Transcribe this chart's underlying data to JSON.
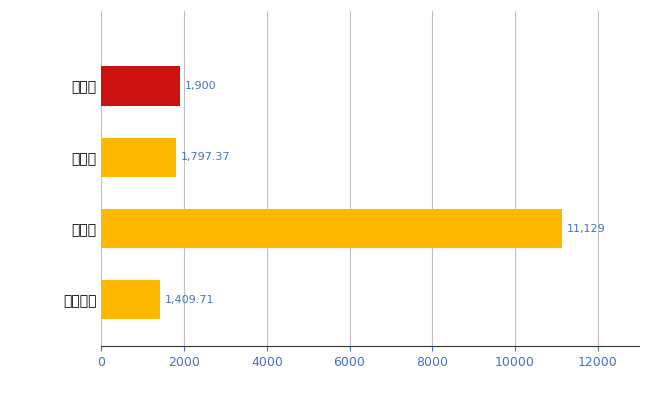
{
  "categories": [
    "全国平均",
    "県最大",
    "県平均",
    "七尾市"
  ],
  "values": [
    1409.71,
    11129,
    1797.37,
    1900
  ],
  "bar_colors": [
    "#FFB800",
    "#FFB800",
    "#FFB800",
    "#CC1111"
  ],
  "labels": [
    "1,409.71",
    "11,129",
    "1,797.37",
    "1,900"
  ],
  "xlim": [
    0,
    13000
  ],
  "xticks": [
    0,
    2000,
    4000,
    6000,
    8000,
    10000,
    12000
  ],
  "background_color": "#FFFFFF",
  "grid_color": "#C0C0C0",
  "label_color": "#4472C4",
  "tick_color": "#4472C4",
  "bar_height": 0.55,
  "figsize": [
    6.5,
    4.0
  ],
  "dpi": 100
}
